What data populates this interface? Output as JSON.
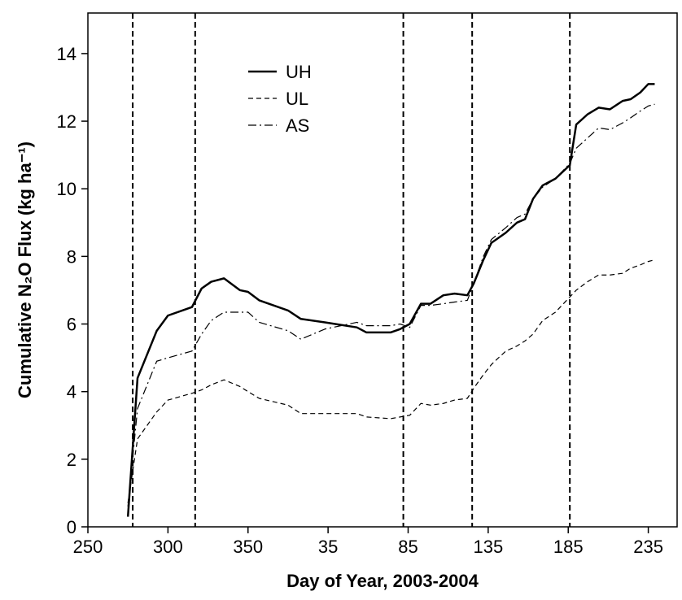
{
  "chart_data": {
    "type": "line",
    "x_label": "Day of Year, 2003-2004",
    "y_label": "Cumulative N₂O Flux (kg ha⁻¹)",
    "x": [
      275,
      281,
      293,
      300,
      315,
      321,
      327,
      335,
      345,
      350,
      357,
      375,
      383,
      398,
      418,
      424,
      439,
      445,
      451,
      458,
      464,
      472,
      479,
      487,
      491,
      497,
      502,
      511,
      518,
      523,
      528,
      534,
      542,
      551,
      555,
      562,
      569,
      576,
      584,
      589,
      595,
      600,
      604
    ],
    "series": [
      {
        "name": "UH",
        "color": "#000000",
        "dash": "solid",
        "values": [
          0.3,
          4.4,
          5.8,
          6.25,
          6.5,
          7.05,
          7.25,
          7.35,
          7.0,
          6.95,
          6.7,
          6.4,
          6.15,
          6.05,
          5.9,
          5.75,
          5.75,
          5.85,
          6.0,
          6.6,
          6.6,
          6.85,
          6.9,
          6.85,
          7.2,
          7.9,
          8.4,
          8.7,
          9.0,
          9.1,
          9.7,
          10.1,
          10.3,
          10.7,
          11.9,
          12.2,
          12.4,
          12.35,
          12.6,
          12.65,
          12.85,
          13.1,
          13.1
        ]
      },
      {
        "name": "UL",
        "color": "#000000",
        "dash": "dashed",
        "values": [
          0.7,
          2.6,
          3.4,
          3.75,
          3.95,
          4.05,
          4.2,
          4.35,
          4.15,
          4.0,
          3.8,
          3.6,
          3.35,
          3.35,
          3.35,
          3.25,
          3.2,
          3.25,
          3.3,
          3.65,
          3.6,
          3.65,
          3.75,
          3.8,
          4.1,
          4.5,
          4.8,
          5.2,
          5.35,
          5.5,
          5.7,
          6.1,
          6.35,
          6.8,
          7.0,
          7.25,
          7.45,
          7.45,
          7.5,
          7.65,
          7.75,
          7.85,
          7.9
        ]
      },
      {
        "name": "AS",
        "color": "#000000",
        "dash": "dashdot",
        "values": [
          0.6,
          3.5,
          4.9,
          5.0,
          5.2,
          5.7,
          6.1,
          6.35,
          6.35,
          6.35,
          6.05,
          5.8,
          5.55,
          5.85,
          6.05,
          5.95,
          5.95,
          6.0,
          5.9,
          6.55,
          6.55,
          6.6,
          6.65,
          6.7,
          7.2,
          8.0,
          8.5,
          8.85,
          9.15,
          9.25,
          9.7,
          10.05,
          10.3,
          10.75,
          11.2,
          11.5,
          11.8,
          11.75,
          11.95,
          12.1,
          12.3,
          12.45,
          12.5
        ]
      }
    ],
    "vlines": [
      278,
      317,
      447,
      490,
      551
    ],
    "xlim": [
      250,
      618
    ],
    "ylim": [
      0,
      15.2
    ],
    "xticks": [
      250,
      300,
      350,
      {
        "value": 400,
        "label": "35"
      },
      {
        "value": 450,
        "label": "85"
      },
      {
        "value": 500,
        "label": "135"
      },
      {
        "value": 550,
        "label": "185"
      },
      {
        "value": 600,
        "label": "235"
      }
    ],
    "yticks": [
      0,
      2,
      4,
      6,
      8,
      10,
      12,
      14
    ],
    "legend": "upper center"
  }
}
